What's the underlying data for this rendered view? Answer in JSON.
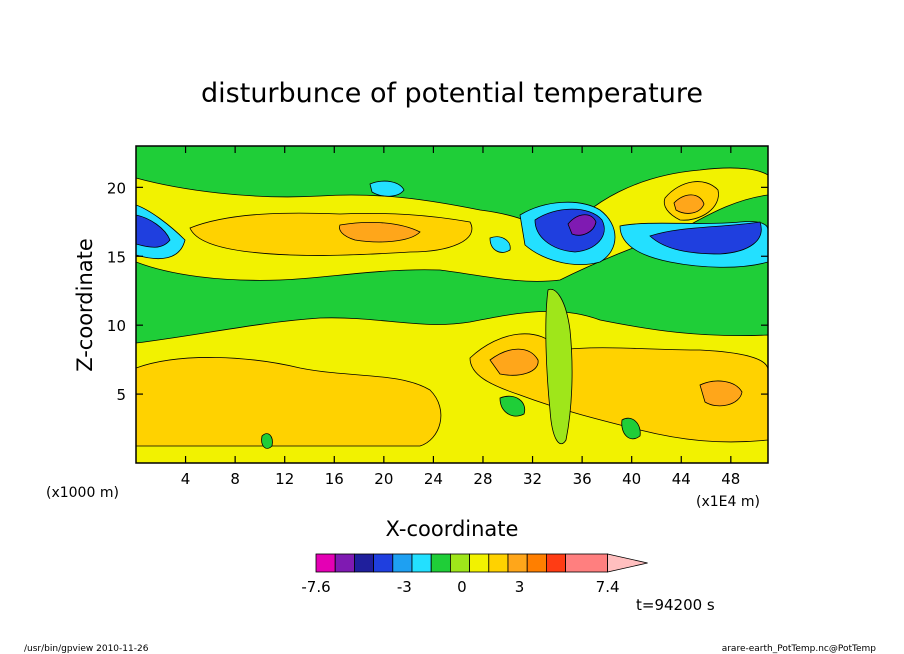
{
  "chart_data": {
    "type": "heatmap",
    "title": "disturbunce of potential temperature",
    "xlabel": "X-coordinate",
    "ylabel": "Z-coordinate",
    "x_unit_left": "(x1000 m)",
    "x_unit_right": "(x1E4 m)",
    "xlim": [
      0,
      51
    ],
    "ylim": [
      0,
      23
    ],
    "xticks": [
      4,
      8,
      12,
      16,
      20,
      24,
      28,
      32,
      36,
      40,
      44,
      48
    ],
    "yticks": [
      5,
      10,
      15,
      20
    ],
    "colorbar": {
      "boundaries": [
        -7.6,
        -6.6,
        -5.6,
        -4.6,
        -3.6,
        -2.6,
        -1.6,
        -0.6,
        0.4,
        1.4,
        2.4,
        3.4,
        4.4,
        5.4,
        7.4
      ],
      "colors": [
        "#e400b4",
        "#7f1ab2",
        "#1f1f9c",
        "#1f3fdf",
        "#1ea0f2",
        "#23e0ff",
        "#1fce38",
        "#9fe61a",
        "#f2f200",
        "#ffd200",
        "#ffa61a",
        "#ff7f00",
        "#ff3c14",
        "#ff7f7f",
        "#ffbfbf"
      ],
      "tick_labels": [
        {
          "label": "-7.6",
          "value": -7.6
        },
        {
          "label": "-3",
          "value": -3
        },
        {
          "label": "0",
          "value": 0
        },
        {
          "label": "3",
          "value": 3
        },
        {
          "label": "7.4",
          "value": 7.4
        }
      ]
    },
    "time_label": "t=94200 s"
  },
  "footer": {
    "left": "/usr/bin/gpview   2010-11-26",
    "right": "arare-earth_PotTemp.nc@PotTemp"
  }
}
